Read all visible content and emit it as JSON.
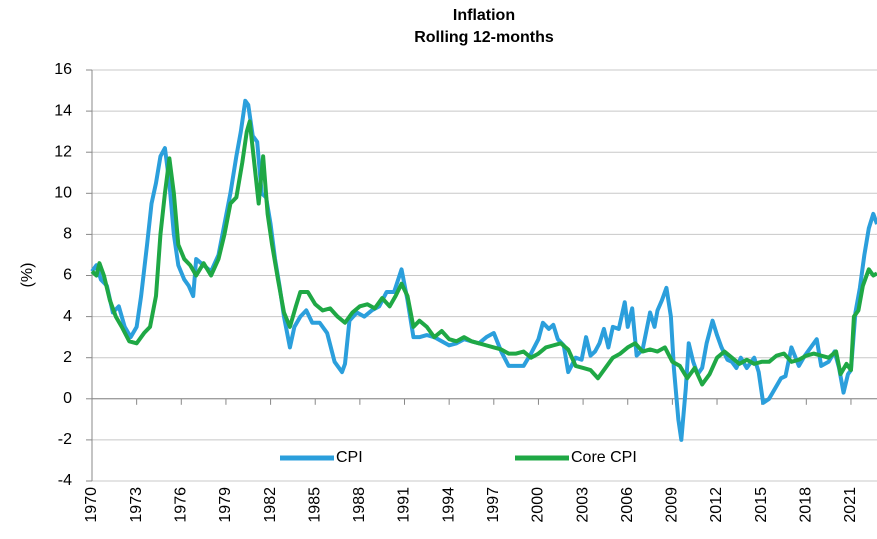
{
  "chart_data": {
    "type": "line",
    "title": "Inflation",
    "subtitle": "Rolling 12-months",
    "y_label": "(%)",
    "xlim": [
      1970,
      2022.75
    ],
    "xticks": [
      1970,
      1973,
      1976,
      1979,
      1982,
      1985,
      1988,
      1991,
      1994,
      1997,
      2000,
      2003,
      2006,
      2009,
      2012,
      2015,
      2018,
      2021
    ],
    "ylim": [
      -4,
      16
    ],
    "yticks": [
      -4,
      -2,
      0,
      2,
      4,
      6,
      8,
      10,
      12,
      14,
      16
    ],
    "grid": true,
    "series": [
      {
        "name": "CPI",
        "color": "#2b9fdc",
        "x": [
          1970.0,
          1970.3,
          1970.6,
          1971.0,
          1971.4,
          1971.8,
          1972.2,
          1972.6,
          1973.0,
          1973.3,
          1973.7,
          1974.0,
          1974.3,
          1974.6,
          1974.9,
          1975.2,
          1975.5,
          1975.8,
          1976.2,
          1976.5,
          1976.8,
          1977.0,
          1977.5,
          1978.0,
          1978.5,
          1978.9,
          1979.3,
          1979.7,
          1980.0,
          1980.3,
          1980.5,
          1980.8,
          1981.1,
          1981.4,
          1981.7,
          1982.0,
          1982.3,
          1982.6,
          1982.9,
          1983.3,
          1983.6,
          1984.0,
          1984.4,
          1984.8,
          1985.3,
          1985.8,
          1986.3,
          1986.8,
          1987.0,
          1987.3,
          1987.8,
          1988.3,
          1988.8,
          1989.3,
          1989.8,
          1990.3,
          1990.8,
          1991.2,
          1991.6,
          1992.0,
          1992.5,
          1993.0,
          1993.5,
          1994.0,
          1994.5,
          1995.0,
          1995.5,
          1996.0,
          1996.5,
          1997.0,
          1997.5,
          1998.0,
          1998.5,
          1999.0,
          1999.5,
          2000.0,
          2000.3,
          2000.7,
          2001.0,
          2001.3,
          2001.7,
          2002.0,
          2002.5,
          2002.9,
          2003.2,
          2003.5,
          2003.8,
          2004.1,
          2004.4,
          2004.7,
          2005.0,
          2005.4,
          2005.8,
          2006.0,
          2006.3,
          2006.6,
          2007.0,
          2007.5,
          2007.8,
          2008.0,
          2008.3,
          2008.6,
          2008.9,
          2009.1,
          2009.4,
          2009.6,
          2009.9,
          2010.1,
          2010.4,
          2010.7,
          2011.0,
          2011.3,
          2011.7,
          2012.0,
          2012.3,
          2012.7,
          2013.0,
          2013.3,
          2013.6,
          2014.0,
          2014.5,
          2014.8,
          2015.1,
          2015.5,
          2015.9,
          2016.3,
          2016.6,
          2017.0,
          2017.5,
          2017.9,
          2018.3,
          2018.7,
          2019.0,
          2019.5,
          2019.9,
          2020.2,
          2020.5,
          2020.8,
          2021.0,
          2021.3,
          2021.6,
          2021.9,
          2022.2,
          2022.5,
          2022.75
        ],
        "values": [
          6.2,
          6.5,
          5.8,
          5.5,
          4.2,
          4.5,
          3.5,
          3.0,
          3.5,
          5.0,
          7.5,
          9.5,
          10.5,
          11.8,
          12.2,
          10.5,
          8.0,
          6.5,
          5.8,
          5.5,
          5.0,
          6.8,
          6.5,
          6.2,
          7.0,
          8.5,
          10.0,
          11.8,
          13.0,
          14.5,
          14.3,
          12.8,
          12.5,
          10.0,
          9.8,
          8.5,
          6.8,
          5.5,
          4.0,
          2.5,
          3.5,
          4.0,
          4.3,
          3.7,
          3.7,
          3.2,
          1.8,
          1.3,
          1.7,
          3.8,
          4.2,
          4.0,
          4.3,
          4.5,
          5.2,
          5.2,
          6.3,
          4.8,
          3.0,
          3.0,
          3.1,
          3.0,
          2.8,
          2.6,
          2.7,
          2.9,
          2.8,
          2.7,
          3.0,
          3.2,
          2.3,
          1.6,
          1.6,
          1.6,
          2.2,
          2.9,
          3.7,
          3.4,
          3.6,
          2.9,
          2.6,
          1.3,
          2.0,
          1.9,
          3.0,
          2.1,
          2.3,
          2.7,
          3.4,
          2.5,
          3.5,
          3.4,
          4.7,
          3.5,
          4.4,
          2.1,
          2.4,
          4.2,
          3.5,
          4.3,
          4.8,
          5.4,
          4.0,
          1.5,
          -1.0,
          -2.0,
          0.5,
          2.7,
          1.8,
          1.2,
          1.5,
          2.7,
          3.8,
          3.1,
          2.5,
          1.9,
          1.8,
          1.5,
          2.0,
          1.5,
          2.0,
          1.3,
          -0.2,
          0.0,
          0.5,
          1.0,
          1.1,
          2.5,
          1.6,
          2.1,
          2.5,
          2.9,
          1.6,
          1.8,
          2.3,
          1.5,
          0.3,
          1.2,
          1.4,
          4.2,
          5.4,
          7.0,
          8.3,
          9.0,
          8.5
        ]
      },
      {
        "name": "Core CPI",
        "color": "#1fa845",
        "x": [
          1970.0,
          1970.3,
          1970.5,
          1970.8,
          1971.2,
          1971.6,
          1972.0,
          1972.5,
          1973.0,
          1973.5,
          1973.9,
          1974.3,
          1974.6,
          1974.9,
          1975.2,
          1975.5,
          1975.8,
          1976.2,
          1976.6,
          1977.0,
          1977.5,
          1978.0,
          1978.5,
          1978.9,
          1979.3,
          1979.7,
          1980.1,
          1980.4,
          1980.6,
          1980.9,
          1981.2,
          1981.5,
          1981.8,
          1982.1,
          1982.5,
          1982.9,
          1983.3,
          1983.7,
          1984.0,
          1984.5,
          1985.0,
          1985.5,
          1986.0,
          1986.5,
          1987.0,
          1987.5,
          1988.0,
          1988.5,
          1989.0,
          1989.5,
          1990.0,
          1990.4,
          1990.8,
          1991.2,
          1991.6,
          1992.0,
          1992.5,
          1993.0,
          1993.5,
          1994.0,
          1994.5,
          1995.0,
          1995.5,
          1996.0,
          1996.5,
          1997.0,
          1997.5,
          1998.0,
          1998.5,
          1999.0,
          1999.5,
          2000.0,
          2000.5,
          2001.0,
          2001.5,
          2002.0,
          2002.5,
          2003.0,
          2003.5,
          2004.0,
          2004.5,
          2005.0,
          2005.5,
          2006.0,
          2006.5,
          2007.0,
          2007.5,
          2008.0,
          2008.5,
          2009.0,
          2009.5,
          2010.0,
          2010.5,
          2011.0,
          2011.5,
          2012.0,
          2012.5,
          2013.0,
          2013.5,
          2014.0,
          2014.5,
          2015.0,
          2015.5,
          2016.0,
          2016.5,
          2017.0,
          2017.5,
          2018.0,
          2018.5,
          2019.0,
          2019.5,
          2020.0,
          2020.3,
          2020.7,
          2021.0,
          2021.2,
          2021.5,
          2021.8,
          2022.2,
          2022.5,
          2022.75
        ],
        "values": [
          6.2,
          6.0,
          6.6,
          6.0,
          4.8,
          4.0,
          3.5,
          2.8,
          2.7,
          3.2,
          3.5,
          5.0,
          8.0,
          10.0,
          11.7,
          10.0,
          7.5,
          6.8,
          6.5,
          6.0,
          6.6,
          6.0,
          6.8,
          8.0,
          9.5,
          9.8,
          11.5,
          13.0,
          13.5,
          11.5,
          9.5,
          11.8,
          9.0,
          7.5,
          5.8,
          4.2,
          3.5,
          4.5,
          5.2,
          5.2,
          4.6,
          4.3,
          4.4,
          4.0,
          3.7,
          4.2,
          4.5,
          4.6,
          4.4,
          4.9,
          4.5,
          5.0,
          5.6,
          5.0,
          3.5,
          3.8,
          3.5,
          3.0,
          3.3,
          2.9,
          2.8,
          3.0,
          2.8,
          2.7,
          2.6,
          2.5,
          2.4,
          2.2,
          2.2,
          2.3,
          2.0,
          2.2,
          2.5,
          2.6,
          2.7,
          2.4,
          1.6,
          1.5,
          1.4,
          1.0,
          1.5,
          2.0,
          2.2,
          2.5,
          2.7,
          2.3,
          2.4,
          2.3,
          2.5,
          1.8,
          1.6,
          1.0,
          1.5,
          0.7,
          1.2,
          2.0,
          2.3,
          2.0,
          1.7,
          1.9,
          1.7,
          1.8,
          1.8,
          2.1,
          2.2,
          1.8,
          1.9,
          2.1,
          2.2,
          2.1,
          2.0,
          2.3,
          1.2,
          1.7,
          1.4,
          4.0,
          4.3,
          5.5,
          6.3,
          6.0,
          6.1
        ]
      }
    ]
  }
}
